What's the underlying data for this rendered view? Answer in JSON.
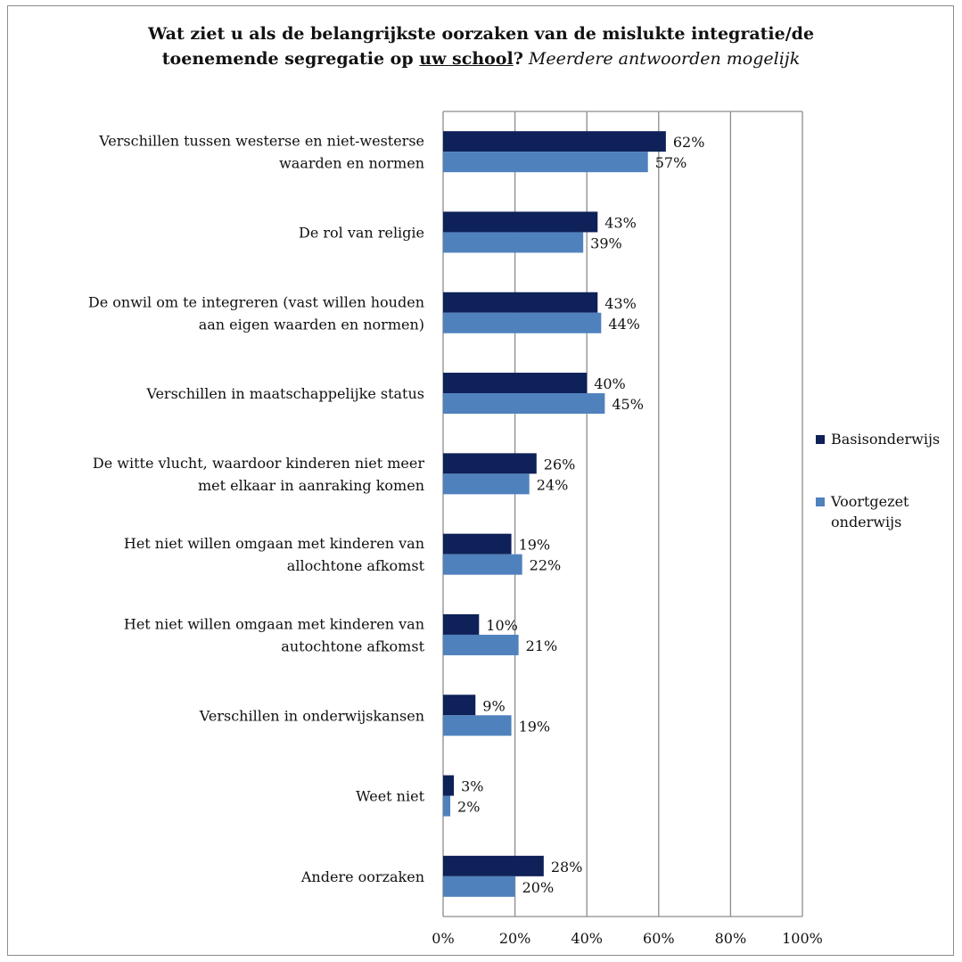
{
  "title": {
    "line1": "Wat ziet u als de belangrijkste oorzaken van de mislukte integratie/de",
    "line2_bold": "toenemende segregatie op ",
    "line2_underline": "uw school",
    "line2_q": "?",
    "line2_italic": " Meerdere antwoorden mogelijk"
  },
  "colors": {
    "basis": "#0e2158",
    "voortgezet": "#4f81bd",
    "grid": "#8c8c8c"
  },
  "chart_data": {
    "type": "bar",
    "orientation": "horizontal",
    "categories": [
      [
        "Verschillen tussen westerse en niet-westerse",
        "waarden en normen"
      ],
      [
        "De rol van religie"
      ],
      [
        "De onwil om te integreren (vast willen houden",
        "aan eigen waarden en normen)"
      ],
      [
        "Verschillen in maatschappelijke status"
      ],
      [
        "De witte vlucht, waardoor kinderen niet meer",
        "met elkaar in aanraking komen"
      ],
      [
        "Het niet willen omgaan met kinderen van",
        "allochtone afkomst"
      ],
      [
        "Het niet willen omgaan met kinderen van",
        "autochtone afkomst"
      ],
      [
        "Verschillen in onderwijskansen"
      ],
      [
        "Weet niet"
      ],
      [
        "Andere oorzaken"
      ]
    ],
    "series": [
      {
        "name": "Basisonderwijs",
        "values": [
          62,
          43,
          43,
          40,
          26,
          19,
          10,
          9,
          3,
          28
        ]
      },
      {
        "name": "Voortgezet onderwijs",
        "values": [
          57,
          39,
          44,
          45,
          24,
          22,
          21,
          19,
          2,
          20
        ]
      }
    ],
    "legend_lines": [
      [
        "Basisonderwijs"
      ],
      [
        "Voortgezet",
        "onderwijs"
      ]
    ],
    "xlim": [
      0,
      100
    ],
    "xticks": [
      0,
      20,
      40,
      60,
      80,
      100
    ],
    "xtick_labels": [
      "0%",
      "20%",
      "40%",
      "60%",
      "80%",
      "100%"
    ],
    "value_suffix": "%",
    "grid": true,
    "legend_position": "right"
  }
}
